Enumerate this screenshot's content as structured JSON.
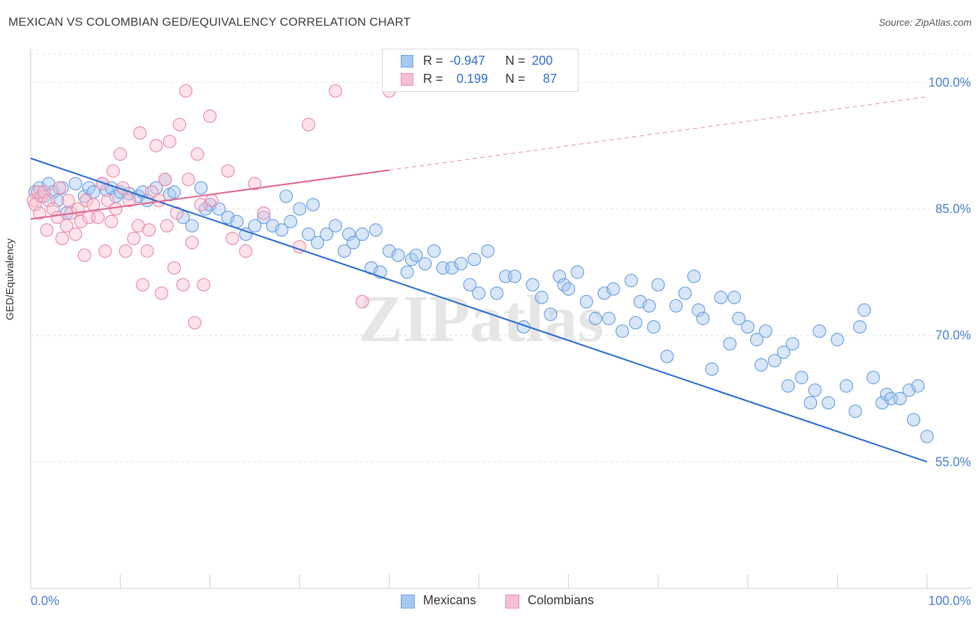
{
  "title": "MEXICAN VS COLOMBIAN GED/EQUIVALENCY CORRELATION CHART",
  "source": "Source: ZipAtlas.com",
  "watermark": "ZIPatlas",
  "legend_top": {
    "rows": [
      {
        "r_label": "R =",
        "r_value": "-0.947",
        "n_label": "N =",
        "n_value": "200",
        "color": "#a8c8f0",
        "border": "#6a9ee0"
      },
      {
        "r_label": "R =",
        "r_value": "0.199",
        "n_label": "N =",
        "n_value": "87",
        "color": "#f8c0d0",
        "border": "#e88aa8"
      }
    ]
  },
  "legend_bottom": {
    "items": [
      {
        "label": "Mexicans",
        "color": "#a8c8f0",
        "border": "#6a9ee0"
      },
      {
        "label": "Colombians",
        "color": "#f8c0d0",
        "border": "#e88aa8"
      }
    ]
  },
  "chart_data": {
    "type": "scatter",
    "title": "MEXICAN VS COLOMBIAN GED/EQUIVALENCY CORRELATION CHART",
    "xlabel": "",
    "ylabel": "GED/Equivalency",
    "x_tick_labels": [
      "0.0%",
      "100.0%"
    ],
    "y_tick_labels": [
      "100.0%",
      "85.0%",
      "70.0%",
      "55.0%"
    ],
    "y_ticks": [
      100,
      85,
      70,
      55
    ],
    "xlim": [
      0,
      100
    ],
    "ylim": [
      40,
      104
    ],
    "grid": true,
    "series": [
      {
        "name": "Mexicans",
        "color": "#6a9ee0",
        "fill": "#a8c8f0",
        "trend": {
          "x0": 0,
          "y0": 91.0,
          "x1": 100,
          "y1": 55.0,
          "dashed_until": 100
        },
        "points": [
          [
            0.5,
            87
          ],
          [
            1,
            87.5
          ],
          [
            1.5,
            86.5
          ],
          [
            2,
            88
          ],
          [
            2.5,
            87
          ],
          [
            3,
            86
          ],
          [
            3.5,
            87.5
          ],
          [
            4,
            84.5
          ],
          [
            5,
            88
          ],
          [
            6,
            86.5
          ],
          [
            6.5,
            87.5
          ],
          [
            7,
            87
          ],
          [
            8,
            88
          ],
          [
            8.5,
            87.2
          ],
          [
            9,
            87.5
          ],
          [
            9.5,
            86.5
          ],
          [
            10,
            87
          ],
          [
            11,
            86.8
          ],
          [
            12,
            86.5
          ],
          [
            12.5,
            87
          ],
          [
            13,
            86
          ],
          [
            14,
            87.5
          ],
          [
            15,
            88.5
          ],
          [
            15.5,
            86.7
          ],
          [
            16,
            87
          ],
          [
            17,
            84
          ],
          [
            18,
            83
          ],
          [
            19,
            87.5
          ],
          [
            19.5,
            85
          ],
          [
            20,
            85.5
          ],
          [
            21,
            85
          ],
          [
            22,
            84
          ],
          [
            23,
            83.5
          ],
          [
            24,
            82
          ],
          [
            25,
            83
          ],
          [
            26,
            84
          ],
          [
            27,
            83
          ],
          [
            28,
            82.5
          ],
          [
            28.5,
            86.5
          ],
          [
            29,
            83.5
          ],
          [
            30,
            85
          ],
          [
            31,
            82
          ],
          [
            31.5,
            85.5
          ],
          [
            32,
            81
          ],
          [
            33,
            82
          ],
          [
            34,
            83
          ],
          [
            35,
            80
          ],
          [
            35.5,
            82
          ],
          [
            36,
            81
          ],
          [
            37,
            82
          ],
          [
            38,
            78
          ],
          [
            38.5,
            82.5
          ],
          [
            39,
            77.5
          ],
          [
            40,
            80
          ],
          [
            41,
            79.5
          ],
          [
            42,
            77.5
          ],
          [
            42.5,
            79
          ],
          [
            43,
            79.5
          ],
          [
            44,
            78.5
          ],
          [
            45,
            80
          ],
          [
            46,
            78
          ],
          [
            47,
            78
          ],
          [
            48,
            78.5
          ],
          [
            49,
            76
          ],
          [
            49.5,
            79
          ],
          [
            50,
            75
          ],
          [
            51,
            80
          ],
          [
            52,
            75
          ],
          [
            53,
            77
          ],
          [
            54,
            77
          ],
          [
            55,
            71
          ],
          [
            56,
            76
          ],
          [
            57,
            74.5
          ],
          [
            58,
            72.5
          ],
          [
            59,
            77
          ],
          [
            59.5,
            76
          ],
          [
            60,
            75.5
          ],
          [
            61,
            77.5
          ],
          [
            62,
            74
          ],
          [
            63,
            72
          ],
          [
            64,
            75
          ],
          [
            64.5,
            72
          ],
          [
            65,
            75.5
          ],
          [
            66,
            70.5
          ],
          [
            67,
            76.5
          ],
          [
            67.5,
            71.5
          ],
          [
            68,
            74
          ],
          [
            69,
            73.5
          ],
          [
            69.5,
            71
          ],
          [
            70,
            76
          ],
          [
            71,
            67.5
          ],
          [
            72,
            73.5
          ],
          [
            73,
            75
          ],
          [
            74,
            77
          ],
          [
            74.5,
            73
          ],
          [
            75,
            72
          ],
          [
            76,
            66
          ],
          [
            77,
            74.5
          ],
          [
            78,
            69
          ],
          [
            78.5,
            74.5
          ],
          [
            79,
            72
          ],
          [
            80,
            71
          ],
          [
            81,
            69.5
          ],
          [
            81.5,
            66.5
          ],
          [
            82,
            70.5
          ],
          [
            83,
            67
          ],
          [
            84,
            68
          ],
          [
            84.5,
            64
          ],
          [
            85,
            69
          ],
          [
            86,
            65
          ],
          [
            87,
            62
          ],
          [
            87.5,
            63.5
          ],
          [
            88,
            70.5
          ],
          [
            89,
            62
          ],
          [
            90,
            69.5
          ],
          [
            91,
            64
          ],
          [
            92,
            61
          ],
          [
            92.5,
            71
          ],
          [
            93,
            73
          ],
          [
            94,
            65
          ],
          [
            95,
            62
          ],
          [
            95.5,
            63
          ],
          [
            96,
            62.5
          ],
          [
            97,
            62.5
          ],
          [
            98,
            63.5
          ],
          [
            98.5,
            60
          ],
          [
            99,
            64
          ],
          [
            100,
            58
          ]
        ]
      },
      {
        "name": "Colombians",
        "color": "#e88aa8",
        "fill": "#f8c0d0",
        "trend": {
          "x0": 0,
          "y0": 83.8,
          "x1": 40,
          "y1": 89.6,
          "dashed_until": 100
        },
        "points": [
          [
            0.3,
            86
          ],
          [
            0.5,
            85.5
          ],
          [
            0.8,
            87
          ],
          [
            1,
            84.5
          ],
          [
            1.2,
            86.5
          ],
          [
            1.5,
            87
          ],
          [
            1.8,
            82.5
          ],
          [
            2,
            86
          ],
          [
            2.5,
            85
          ],
          [
            3,
            84
          ],
          [
            3.2,
            87.5
          ],
          [
            3.5,
            81.5
          ],
          [
            4,
            83
          ],
          [
            4.2,
            86
          ],
          [
            4.5,
            84.5
          ],
          [
            5,
            82
          ],
          [
            5.3,
            85
          ],
          [
            5.6,
            83.5
          ],
          [
            6,
            79.5
          ],
          [
            6.2,
            86
          ],
          [
            6.5,
            84
          ],
          [
            7,
            85.5
          ],
          [
            7.5,
            84
          ],
          [
            8,
            88
          ],
          [
            8.3,
            80
          ],
          [
            8.6,
            86
          ],
          [
            9,
            83.5
          ],
          [
            9.2,
            89.5
          ],
          [
            9.5,
            85
          ],
          [
            10,
            91.5
          ],
          [
            10.3,
            87.5
          ],
          [
            10.6,
            80
          ],
          [
            11,
            86
          ],
          [
            11.5,
            81.5
          ],
          [
            12,
            83
          ],
          [
            12.2,
            94
          ],
          [
            12.5,
            76
          ],
          [
            13,
            80
          ],
          [
            13.2,
            82.5
          ],
          [
            13.5,
            87
          ],
          [
            14,
            92.5
          ],
          [
            14.3,
            86
          ],
          [
            14.6,
            75
          ],
          [
            15,
            88.5
          ],
          [
            15.2,
            83
          ],
          [
            15.5,
            93
          ],
          [
            16,
            78
          ],
          [
            16.3,
            84.5
          ],
          [
            16.6,
            95
          ],
          [
            17,
            76
          ],
          [
            17.3,
            99
          ],
          [
            17.6,
            88.5
          ],
          [
            18,
            81
          ],
          [
            18.3,
            71.5
          ],
          [
            18.6,
            91.5
          ],
          [
            19,
            85.5
          ],
          [
            19.3,
            76
          ],
          [
            20,
            96
          ],
          [
            20.2,
            86
          ],
          [
            22,
            89.5
          ],
          [
            22.5,
            81.5
          ],
          [
            24,
            80
          ],
          [
            25,
            88
          ],
          [
            26,
            84.5
          ],
          [
            30,
            80.5
          ],
          [
            31,
            95
          ],
          [
            34,
            99
          ],
          [
            37,
            74
          ],
          [
            40,
            99
          ]
        ]
      }
    ]
  }
}
